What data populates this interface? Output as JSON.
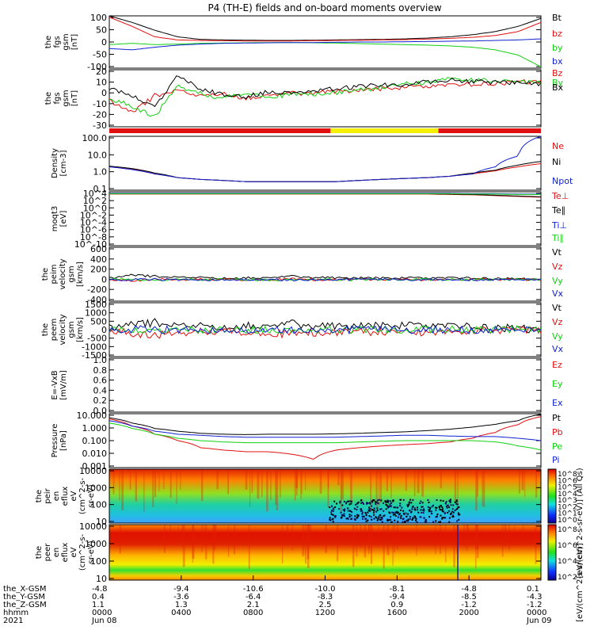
{
  "title": "P4 (TH-E) fields and on-board moments overview",
  "colors": {
    "black": "#000000",
    "red": "#e01010",
    "green": "#10d010",
    "blue": "#1020d0",
    "yellow": "#f4f000"
  },
  "chart_data": {
    "type": "line",
    "panels": [
      {
        "id": "bfield-gsm",
        "ylabel": [
          "the",
          "fgs",
          "gsm",
          "[nT]"
        ],
        "yticks": [
          "100",
          "50",
          "0",
          "-50",
          "-100"
        ],
        "ylim": [
          -100,
          100
        ],
        "log": false,
        "series": [
          {
            "name": "Bt",
            "color": "black",
            "y": [
              100,
              75,
              45,
              20,
              10,
              8,
              7,
              6,
              6,
              7,
              8,
              9,
              10,
              12,
              15,
              20,
              28,
              40,
              60,
              90
            ]
          },
          {
            "name": "bz",
            "color": "red",
            "y": [
              95,
              60,
              20,
              8,
              6,
              5,
              4,
              4,
              4,
              5,
              6,
              7,
              8,
              9,
              11,
              14,
              18,
              25,
              40,
              75
            ]
          },
          {
            "name": "by",
            "color": "green",
            "y": [
              -10,
              -5,
              -10,
              -8,
              -5,
              -4,
              -3,
              -2,
              -2,
              -3,
              -4,
              -6,
              -8,
              -10,
              -12,
              -15,
              -20,
              -30,
              -50,
              -95
            ]
          },
          {
            "name": "bx",
            "color": "blue",
            "y": [
              -25,
              -30,
              -20,
              -12,
              -8,
              -5,
              -4,
              -3,
              -2,
              -2,
              -1,
              0,
              0,
              1,
              2,
              3,
              4,
              6,
              8,
              12
            ]
          }
        ],
        "legend": [
          "Bt",
          "bz",
          "by",
          "bx"
        ]
      },
      {
        "id": "bfield-gse",
        "ylabel": [
          "the",
          "fgs",
          "gsm",
          "[nT]"
        ],
        "yticks": [
          "20",
          "10",
          "0",
          "-10",
          "-20",
          "-30"
        ],
        "ylim": [
          -35,
          20
        ],
        "log": false,
        "series": [
          {
            "name": "Bz",
            "color": "red",
            "y": [
              -10,
              -22,
              -5,
              0,
              -6,
              -2,
              -8,
              -4,
              -3,
              -2,
              -1,
              0,
              2,
              3,
              4,
              5,
              6,
              7,
              8,
              9
            ]
          },
          {
            "name": "By",
            "color": "green",
            "y": [
              -8,
              -15,
              -25,
              5,
              -3,
              -8,
              -2,
              -6,
              -4,
              -3,
              -2,
              0,
              3,
              6,
              8,
              12,
              10,
              9,
              8,
              8
            ]
          },
          {
            "name": "Bx",
            "color": "black",
            "y": [
              2,
              -5,
              -15,
              14,
              2,
              -4,
              -6,
              -1,
              -2,
              0,
              2,
              4,
              5,
              6,
              8,
              10,
              9,
              8,
              7,
              6
            ]
          }
        ],
        "legend": [
          "Bz",
          "By",
          "Bx"
        ]
      },
      {
        "id": "density",
        "ylabel": [
          "Density",
          "[cm-3]"
        ],
        "yticks": [
          "100.0",
          "10.0",
          "1.0",
          "0.1"
        ],
        "ylim": [
          0.1,
          100
        ],
        "log": true,
        "series": [
          {
            "name": "Ne",
            "color": "red",
            "y": [
              2,
              1.5,
              0.8,
              0.5,
              0.4,
              0.35,
              0.3,
              0.3,
              0.3,
              0.3,
              0.3,
              0.35,
              0.4,
              0.45,
              0.5,
              0.6,
              0.8,
              1.2,
              2,
              3
            ]
          },
          {
            "name": "Ni",
            "color": "black",
            "y": [
              2.2,
              1.6,
              0.9,
              0.5,
              0.4,
              0.35,
              0.3,
              0.3,
              0.3,
              0.3,
              0.3,
              0.35,
              0.4,
              0.45,
              0.5,
              0.6,
              0.9,
              1.3,
              2.5,
              4
            ]
          },
          {
            "name": "Npot",
            "color": "blue",
            "y": [
              2,
              1.4,
              0.8,
              0.5,
              0.4,
              0.35,
              0.3,
              0.3,
              0.3,
              0.3,
              0.3,
              0.35,
              0.4,
              0.45,
              0.5,
              0.6,
              0.8,
              2,
              8,
              100
            ]
          }
        ],
        "legend": [
          "Ne",
          "Ni",
          "Npot"
        ]
      },
      {
        "id": "temperature",
        "ylabel": [
          "moqt3",
          "[eV]"
        ],
        "yticks": [
          "10^4",
          "10^2",
          "10^0",
          "10^-2",
          "10^-4",
          "10^-6",
          "10^-8",
          "10^-10"
        ],
        "ylim": [
          -10,
          4
        ],
        "log": false,
        "series": [
          {
            "name": "Te⊥",
            "color": "red",
            "y": [
              3.4,
              3.4,
              3.4,
              3.4,
              3.4,
              3.4,
              3.4,
              3.4,
              3.4,
              3.4,
              3.4,
              3.4,
              3.4,
              3.4,
              3.4,
              3.3,
              3.2,
              3.0,
              2.8,
              2.6
            ]
          },
          {
            "name": "Te∥",
            "color": "black",
            "y": [
              3.5,
              3.5,
              3.5,
              3.5,
              3.5,
              3.5,
              3.5,
              3.5,
              3.5,
              3.5,
              3.5,
              3.5,
              3.5,
              3.5,
              3.5,
              3.4,
              3.3,
              3.1,
              2.9,
              2.7
            ]
          },
          {
            "name": "Ti⊥",
            "color": "blue",
            "y": [
              3.6,
              3.6,
              3.6,
              3.6,
              3.6,
              3.6,
              3.6,
              3.6,
              3.6,
              3.6,
              3.6,
              3.6,
              3.6,
              3.6,
              3.6,
              3.6,
              3.5,
              3.5,
              3.4,
              3.4
            ]
          },
          {
            "name": "Ti∥",
            "color": "green",
            "y": [
              3.5,
              3.5,
              3.5,
              3.5,
              3.5,
              3.5,
              3.5,
              3.5,
              3.5,
              3.5,
              3.5,
              3.5,
              3.5,
              3.5,
              3.5,
              3.5,
              3.4,
              3.4,
              3.3,
              3.3
            ]
          }
        ],
        "legend": [
          "Te⊥",
          "Te∥",
          "Ti⊥",
          "Ti∥"
        ]
      },
      {
        "id": "velocity-peim",
        "ylabel": [
          "the",
          "peim",
          "velocity",
          "gsm",
          "[km/s]"
        ],
        "yticks": [
          "600",
          "400",
          "200",
          "0",
          "-200",
          "-400"
        ],
        "ylim": [
          -400,
          600
        ],
        "log": false,
        "series": [
          {
            "name": "Vt",
            "color": "black",
            "y": [
              20,
              80,
              60,
              40,
              35,
              30,
              30,
              40,
              60,
              40,
              30,
              30,
              30,
              30,
              30,
              30,
              30,
              20,
              10,
              5
            ]
          },
          {
            "name": "Vz",
            "color": "red",
            "y": [
              0,
              -20,
              10,
              0,
              5,
              0,
              -5,
              0,
              10,
              0,
              0,
              5,
              0,
              0,
              0,
              0,
              0,
              0,
              0,
              0
            ]
          },
          {
            "name": "Vy",
            "color": "green",
            "y": [
              0,
              10,
              -10,
              5,
              0,
              5,
              0,
              -5,
              0,
              5,
              0,
              0,
              0,
              5,
              0,
              0,
              0,
              0,
              0,
              0
            ]
          },
          {
            "name": "Vx",
            "color": "blue",
            "y": [
              0,
              -5,
              5,
              0,
              -5,
              0,
              5,
              0,
              -5,
              0,
              0,
              0,
              0,
              0,
              0,
              0,
              0,
              0,
              0,
              0
            ]
          }
        ],
        "legend": [
          "Vt",
          "Vz",
          "Vy",
          "Vx"
        ]
      },
      {
        "id": "velocity-peem",
        "ylabel": [
          "the",
          "peem",
          "velocity",
          "gsm",
          "[km/s]"
        ],
        "yticks": [
          "1500",
          "1000",
          "500",
          "0",
          "-500",
          "-1000",
          "-1500"
        ],
        "ylim": [
          -1500,
          1500
        ],
        "log": false,
        "series": [
          {
            "name": "Vt",
            "color": "black",
            "y": [
              50,
              250,
              400,
              200,
              180,
              160,
              200,
              250,
              350,
              200,
              180,
              200,
              250,
              250,
              220,
              200,
              180,
              120,
              60,
              20
            ]
          },
          {
            "name": "Vz",
            "color": "red",
            "y": [
              -50,
              -200,
              -300,
              -150,
              -120,
              -100,
              -150,
              -200,
              -250,
              -150,
              -120,
              -130,
              -150,
              -150,
              -120,
              -100,
              -80,
              -50,
              -20,
              0
            ]
          },
          {
            "name": "Vy",
            "color": "green",
            "y": [
              0,
              -30,
              20,
              -10,
              10,
              -10,
              0,
              10,
              -10,
              0,
              10,
              0,
              -10,
              0,
              10,
              0,
              0,
              0,
              0,
              0
            ]
          },
          {
            "name": "Vx",
            "color": "blue",
            "y": [
              0,
              20,
              -20,
              10,
              -10,
              10,
              0,
              -10,
              10,
              0,
              -10,
              0,
              10,
              0,
              -10,
              0,
              0,
              0,
              0,
              0
            ]
          }
        ],
        "legend": [
          "Vt",
          "Vz",
          "Vy",
          "Vx"
        ]
      },
      {
        "id": "efield",
        "ylabel": [
          "E=-VxB",
          "[mV/m]"
        ],
        "yticks": [
          "1.0",
          "0.8",
          "0.6",
          "0.4",
          "0.2",
          "0.0"
        ],
        "ylim": [
          0,
          1
        ],
        "log": false,
        "series": [],
        "legend": [
          "Ez",
          "Ey",
          "Ex"
        ]
      },
      {
        "id": "pressure",
        "ylabel": [
          "Pressure",
          "[nPa]"
        ],
        "yticks": [
          "10.000",
          "1.000",
          "0.100",
          "0.010",
          "0.001"
        ],
        "ylim": [
          0.001,
          10
        ],
        "log": true,
        "series": [
          {
            "name": "Pt",
            "color": "black",
            "y": [
              5,
              2,
              0.8,
              0.5,
              0.35,
              0.3,
              0.28,
              0.3,
              0.3,
              0.3,
              0.32,
              0.35,
              0.4,
              0.45,
              0.55,
              0.7,
              1,
              1.6,
              3,
              9
            ]
          },
          {
            "name": "Pb",
            "color": "red",
            "y": [
              4,
              1.2,
              0.3,
              0.1,
              0.03,
              0.02,
              0.015,
              0.015,
              0.01,
              0.004,
              0.02,
              0.03,
              0.04,
              0.05,
              0.06,
              0.08,
              0.15,
              0.4,
              1.5,
              6
            ]
          },
          {
            "name": "Pe",
            "color": "green",
            "y": [
              2,
              0.8,
              0.3,
              0.15,
              0.1,
              0.08,
              0.07,
              0.07,
              0.07,
              0.07,
              0.07,
              0.08,
              0.09,
              0.1,
              0.1,
              0.1,
              0.1,
              0.08,
              0.04,
              0.02
            ]
          },
          {
            "name": "Pi",
            "color": "blue",
            "y": [
              3,
              1.2,
              0.5,
              0.3,
              0.25,
              0.2,
              0.18,
              0.18,
              0.18,
              0.18,
              0.18,
              0.2,
              0.22,
              0.25,
              0.25,
              0.22,
              0.2,
              0.2,
              0.15,
              0.1
            ]
          }
        ],
        "legend": [
          "Pt",
          "Pb",
          "Pe",
          "Pi"
        ]
      },
      {
        "id": "peir-spectrogram",
        "type": "heatmap",
        "ylabel": [
          "the",
          "peir",
          "en",
          "eflux",
          "eV",
          "(cm^2-s-",
          "sr-eV)"
        ],
        "yticks": [
          "10000",
          "1000",
          "100",
          "10"
        ],
        "ylim": [
          5,
          30000
        ],
        "log": true
      },
      {
        "id": "peer-spectrogram",
        "type": "heatmap",
        "ylabel": [
          "the",
          "peer",
          "en",
          "eflux",
          "eV",
          "(cm^2-s-",
          "sr-eV)"
        ],
        "yticks": [
          "10000",
          "1000",
          "100",
          "10"
        ],
        "ylim": [
          5,
          30000
        ],
        "log": true
      }
    ],
    "colorbars": [
      {
        "label": "[eV/(cm^2-s-sr-eV)] (All Qs)",
        "ticks": [
          "10^8",
          "10^6",
          "10^5",
          "10^4",
          "10^3",
          "10^2",
          "10^1",
          "10^0"
        ]
      },
      {
        "label": "[eV/(cm^2-s-sr-eV)]",
        "ticks": [
          "10^8",
          "10^6",
          "10^4",
          "10^2"
        ]
      }
    ],
    "xaxis": {
      "rows": [
        {
          "label": "the_X-GSM",
          "values": [
            "-4.8",
            "-9.4",
            "-10.6",
            "-10.0",
            "-8.1",
            "-4.8",
            "0.1"
          ]
        },
        {
          "label": "the_Y-GSM",
          "values": [
            "0.4",
            "-3.6",
            "-6.4",
            "-8.3",
            "-9.4",
            "-8.5",
            "-4.3"
          ]
        },
        {
          "label": "the_Z-GSM",
          "values": [
            "1.1",
            "1.3",
            "2.1",
            "2.5",
            "0.9",
            "-1.2",
            "-1.2"
          ]
        },
        {
          "label": "hhmm",
          "values": [
            "0000",
            "0400",
            "0800",
            "1200",
            "1600",
            "2000",
            "0000"
          ]
        },
        {
          "label": "2021",
          "values": [
            "Jun 08",
            "",
            "",
            "",
            "",
            "",
            "Jun 09"
          ]
        }
      ]
    },
    "mode_bar": [
      {
        "from": 0,
        "to": 12.3,
        "color": "red"
      },
      {
        "from": 12.3,
        "to": 18.3,
        "color": "yellow"
      },
      {
        "from": 18.3,
        "to": 24,
        "color": "red"
      }
    ]
  }
}
